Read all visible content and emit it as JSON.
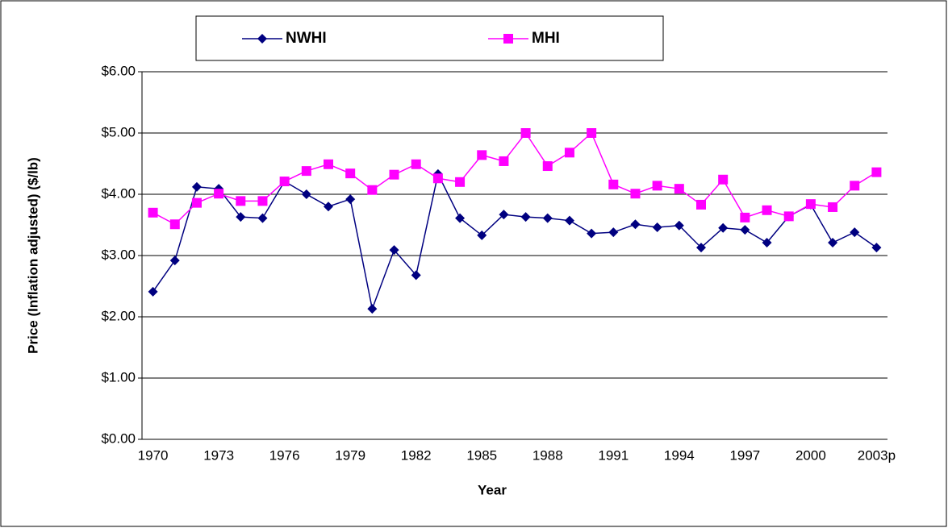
{
  "chart_data": {
    "type": "line",
    "y_label": "Price (Inflation adjusted) ($/lb)",
    "x_label": "Year",
    "categories": [
      "1970",
      null,
      null,
      "1973",
      null,
      null,
      "1976",
      null,
      null,
      "1979",
      null,
      null,
      "1982",
      null,
      null,
      "1985",
      null,
      null,
      "1988",
      null,
      null,
      "1991",
      null,
      null,
      "1994",
      null,
      null,
      "1997",
      null,
      null,
      "2000",
      null,
      null,
      "2003p"
    ],
    "series": [
      {
        "name": "NWHI",
        "color": "#000080",
        "marker": "diamond",
        "values": [
          2.41,
          2.92,
          4.12,
          4.09,
          3.63,
          3.61,
          4.21,
          4.0,
          3.8,
          3.92,
          2.13,
          3.09,
          2.68,
          4.33,
          3.61,
          3.33,
          3.67,
          3.63,
          3.61,
          3.57,
          3.36,
          3.38,
          3.51,
          3.46,
          3.49,
          3.13,
          3.45,
          3.42,
          3.21,
          3.64,
          3.83,
          3.21,
          3.38,
          3.13
        ]
      },
      {
        "name": "MHI",
        "color": "#ff00ff",
        "marker": "square",
        "values": [
          3.7,
          3.51,
          3.86,
          4.01,
          3.89,
          3.89,
          4.21,
          4.38,
          4.49,
          4.34,
          4.07,
          4.32,
          4.49,
          4.26,
          4.2,
          4.64,
          4.54,
          5.0,
          4.46,
          4.68,
          5.0,
          4.16,
          4.01,
          4.14,
          4.09,
          3.83,
          4.24,
          3.62,
          3.74,
          3.64,
          3.84,
          3.79,
          4.14,
          4.36
        ]
      }
    ],
    "ylim": [
      0,
      6
    ],
    "yticks": [
      {
        "value": 0,
        "label": "$0.00"
      },
      {
        "value": 1,
        "label": "$1.00"
      },
      {
        "value": 2,
        "label": "$2.00"
      },
      {
        "value": 3,
        "label": "$3.00"
      },
      {
        "value": 4,
        "label": "$4.00"
      },
      {
        "value": 5,
        "label": "$5.00"
      },
      {
        "value": 6,
        "label": "$6.00"
      }
    ],
    "grid": true,
    "legend": "top"
  }
}
